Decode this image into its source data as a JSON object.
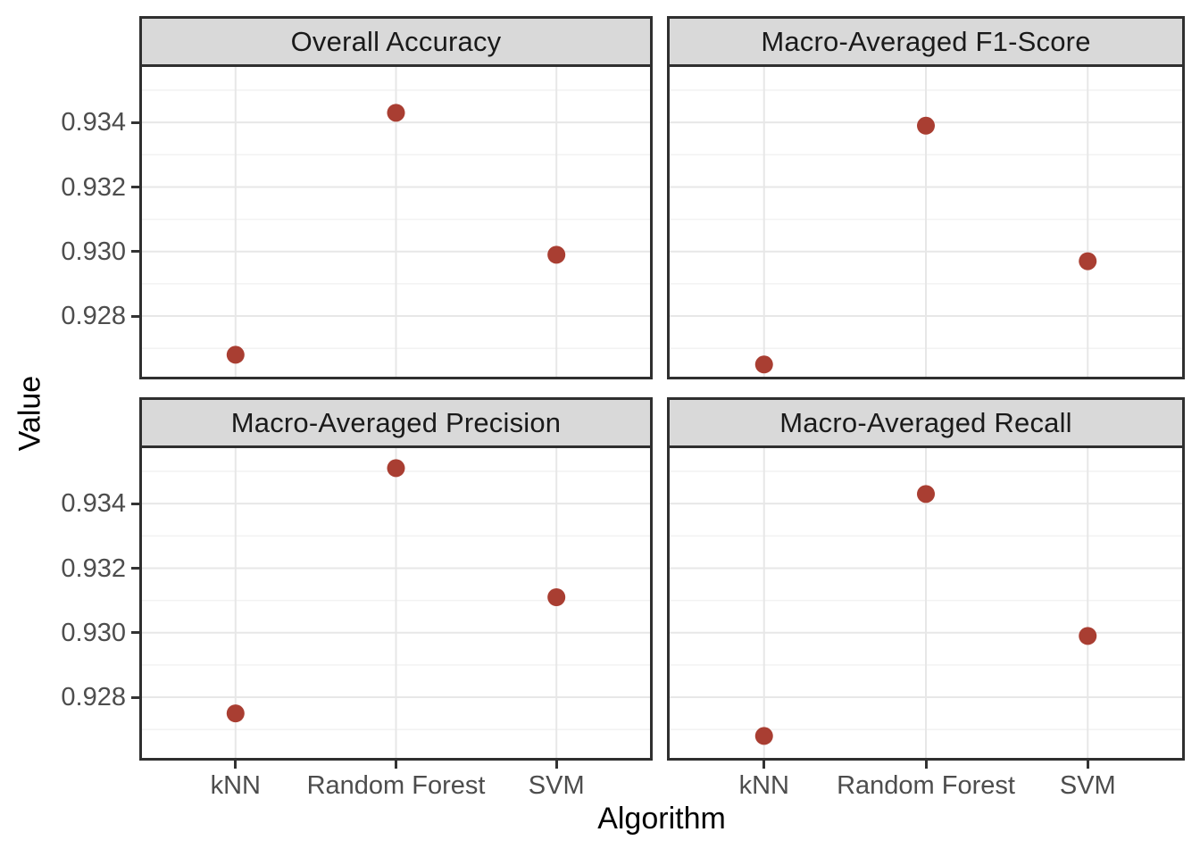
{
  "chart_data": {
    "type": "scatter",
    "layout": "facet_wrap 2x2, shared axes",
    "xlabel": "Algorithm",
    "ylabel": "Value",
    "categories": [
      "kNN",
      "Random Forest",
      "SVM"
    ],
    "y_ticks": [
      0.934,
      0.932,
      0.93,
      0.928
    ],
    "y_tick_labels": [
      "0.934",
      "0.932",
      "0.930",
      "0.928"
    ],
    "y_minor_ticks": [
      0.935,
      0.933,
      0.931,
      0.929,
      0.927
    ],
    "ylim": [
      0.92612,
      0.93572
    ],
    "grid": "major and minor horizontal, major vertical at categories",
    "legend_position": "none",
    "facets": [
      {
        "title": "Overall Accuracy",
        "values": [
          0.9268,
          0.9343,
          0.9299
        ]
      },
      {
        "title": "Macro-Averaged F1-Score",
        "values": [
          0.9265,
          0.9339,
          0.9297
        ]
      },
      {
        "title": "Macro-Averaged Precision",
        "values": [
          0.9275,
          0.9351,
          0.9311
        ]
      },
      {
        "title": "Macro-Averaged Recall",
        "values": [
          0.9268,
          0.9343,
          0.9299
        ]
      }
    ],
    "colors": {
      "point": "#A93E32",
      "strip_background": "#D9D9D9",
      "strip_text": "#1A1A1A",
      "panel_border": "#2F2F2F",
      "grid_major": "#E7E7E7",
      "grid_minor": "#F2F2F2",
      "axis_tick": "#333333",
      "tick_label": "#4D4D4D",
      "axis_title": "#000000",
      "background": "#FFFFFF"
    }
  }
}
